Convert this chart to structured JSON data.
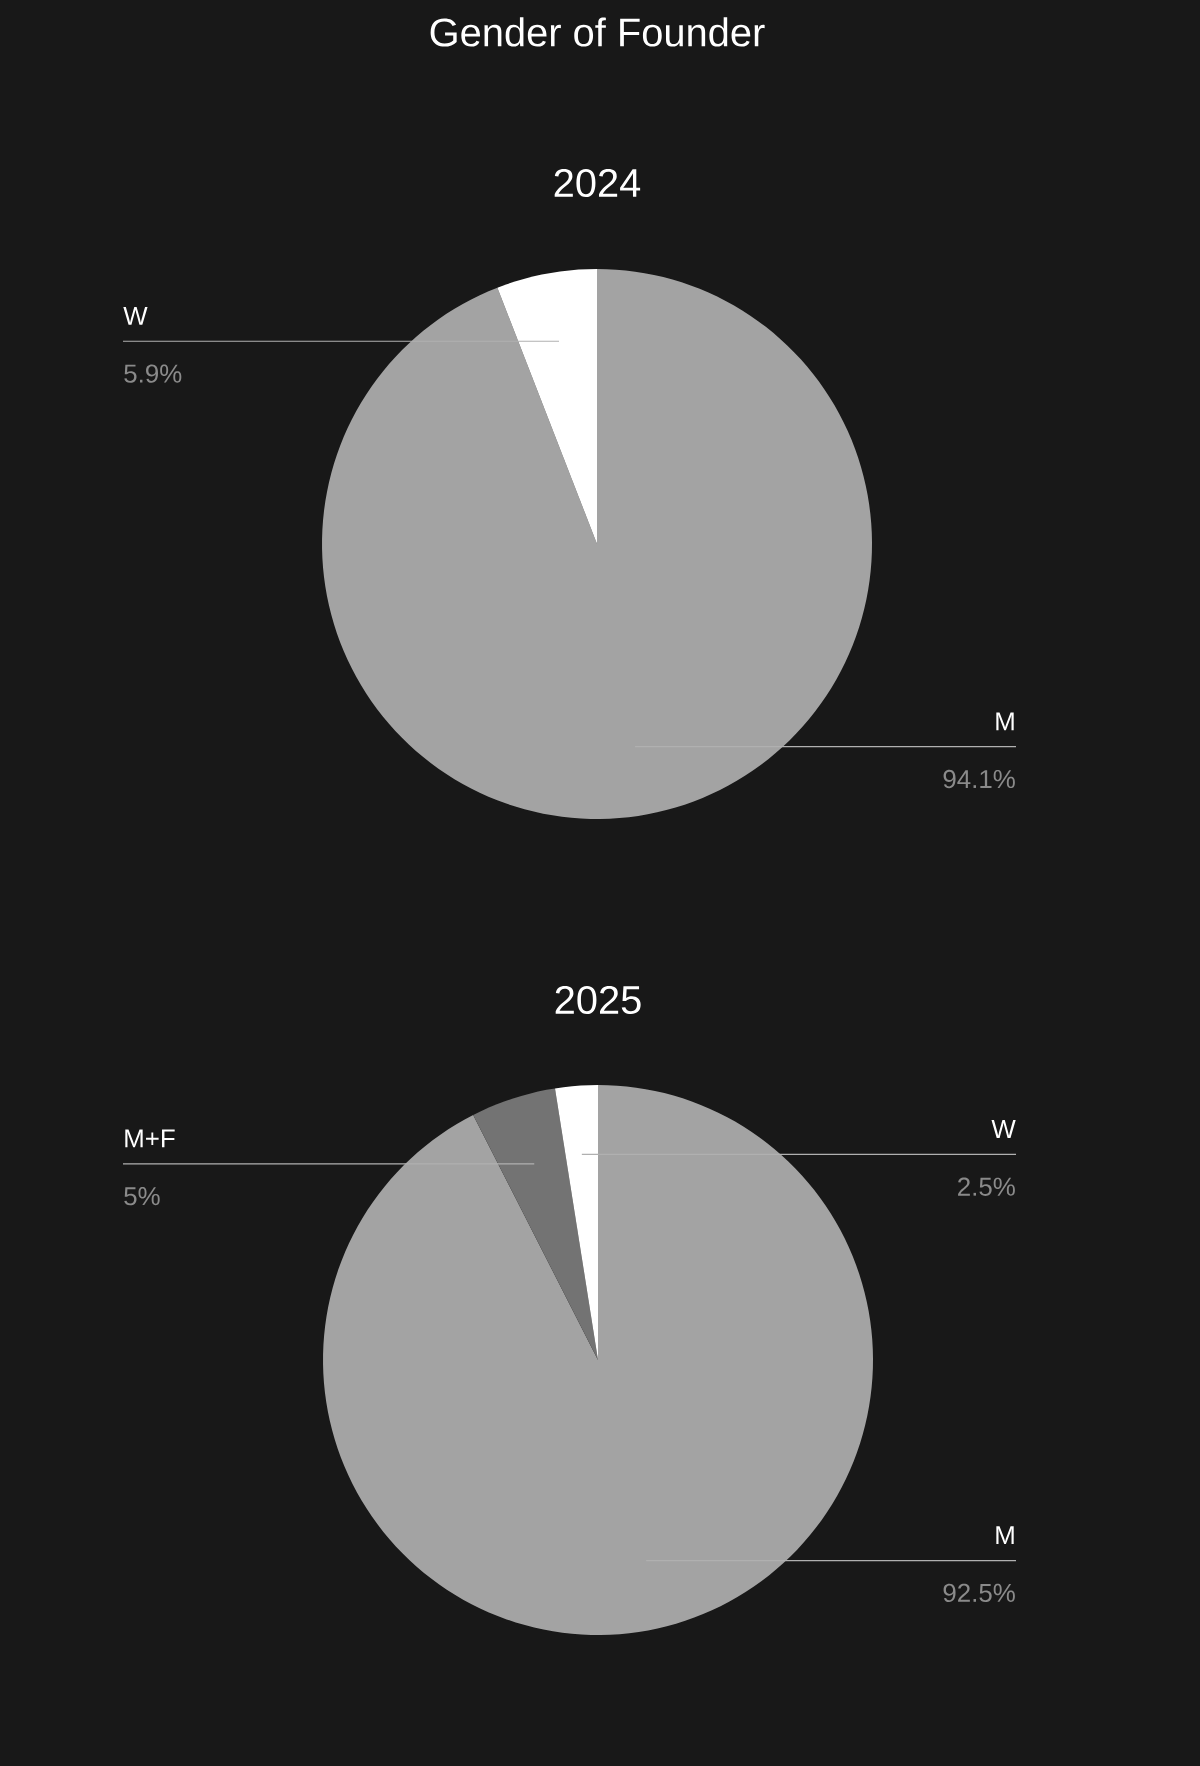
{
  "chart_data": [
    {
      "type": "pie",
      "title": "Gender of Founder",
      "subtitle": "2024",
      "categories": [
        "M",
        "W"
      ],
      "values": [
        94.1,
        5.9
      ],
      "value_labels": [
        "94.1%",
        "5.9%"
      ],
      "colors": [
        "#a3a3a3",
        "#ffffff"
      ]
    },
    {
      "type": "pie",
      "title": "2025",
      "categories": [
        "M",
        "M+F",
        "W"
      ],
      "values": [
        92.5,
        5,
        2.5
      ],
      "value_labels": [
        "92.5%",
        "5%",
        "2.5%"
      ],
      "colors": [
        "#a3a3a3",
        "#737373",
        "#ffffff"
      ]
    }
  ]
}
